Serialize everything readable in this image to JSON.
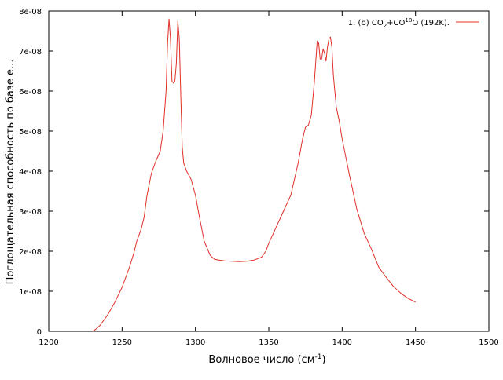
{
  "chart_data": {
    "type": "line",
    "title": "",
    "xlabel": "Волновое число (см",
    "xlabel_superscript": "-1",
    "xlabel_suffix": ")",
    "ylabel": "Поглощательная способность по базе e...",
    "xlim": [
      1200,
      1500
    ],
    "ylim": [
      0,
      8e-08
    ],
    "grid": false,
    "legend_position": "top-right",
    "x_ticks": [
      {
        "value": 1200,
        "label": "1200"
      },
      {
        "value": 1250,
        "label": "1250"
      },
      {
        "value": 1300,
        "label": "1300"
      },
      {
        "value": 1350,
        "label": "1350"
      },
      {
        "value": 1400,
        "label": "1400"
      },
      {
        "value": 1450,
        "label": "1450"
      },
      {
        "value": 1500,
        "label": "1500"
      }
    ],
    "y_ticks": [
      {
        "value": 0,
        "label": "0"
      },
      {
        "value": 1e-08,
        "label": "1e-08"
      },
      {
        "value": 2e-08,
        "label": "2e-08"
      },
      {
        "value": 3e-08,
        "label": "3e-08"
      },
      {
        "value": 4e-08,
        "label": "4e-08"
      },
      {
        "value": 5e-08,
        "label": "5e-08"
      },
      {
        "value": 6e-08,
        "label": "6e-08"
      },
      {
        "value": 7e-08,
        "label": "7e-08"
      },
      {
        "value": 8e-08,
        "label": "8e-08"
      }
    ],
    "series": [
      {
        "name": "1. (b) CO2+CO18O (192K).",
        "legend_parts": [
          "1. (b) CO",
          "2",
          "+CO",
          "18",
          "O (192K)."
        ],
        "color": "#e0302a",
        "x": [
          1230,
          1232,
          1235,
          1240,
          1245,
          1250,
          1255,
          1258,
          1260,
          1263,
          1265,
          1267,
          1270,
          1273,
          1276,
          1278,
          1280,
          1281,
          1282,
          1283,
          1284,
          1285,
          1286,
          1287,
          1288,
          1289,
          1290,
          1291,
          1292,
          1294,
          1297,
          1300,
          1303,
          1306,
          1310,
          1313,
          1316,
          1320,
          1325,
          1330,
          1335,
          1340,
          1345,
          1348,
          1350,
          1355,
          1360,
          1365,
          1370,
          1373,
          1375,
          1377,
          1379,
          1381,
          1383,
          1384,
          1385,
          1386,
          1387,
          1388,
          1389,
          1390,
          1391,
          1392,
          1393,
          1394,
          1395,
          1396,
          1398,
          1400,
          1405,
          1410,
          1415,
          1420,
          1425,
          1430,
          1435,
          1440,
          1445,
          1450
        ],
        "values": [
          0,
          5e-10,
          1.5e-09,
          4e-09,
          7.2e-09,
          1.1e-08,
          1.6e-08,
          1.95e-08,
          2.25e-08,
          2.55e-08,
          2.85e-08,
          3.4e-08,
          3.95e-08,
          4.25e-08,
          4.5e-08,
          5e-08,
          6e-08,
          7.2e-08,
          7.8e-08,
          7.3e-08,
          6.25e-08,
          6.2e-08,
          6.25e-08,
          6.7e-08,
          7.75e-08,
          7.3e-08,
          5.9e-08,
          4.6e-08,
          4.2e-08,
          4e-08,
          3.8e-08,
          3.4e-08,
          2.8e-08,
          2.25e-08,
          1.9e-08,
          1.8e-08,
          1.78e-08,
          1.76e-08,
          1.75e-08,
          1.74e-08,
          1.75e-08,
          1.78e-08,
          1.85e-08,
          2e-08,
          2.2e-08,
          2.6e-08,
          3e-08,
          3.4e-08,
          4.2e-08,
          4.8e-08,
          5.1e-08,
          5.15e-08,
          5.4e-08,
          6.2e-08,
          7.25e-08,
          7.2e-08,
          6.8e-08,
          6.8e-08,
          7.05e-08,
          6.95e-08,
          6.75e-08,
          7.1e-08,
          7.3e-08,
          7.35e-08,
          7.1e-08,
          6.4e-08,
          6e-08,
          5.6e-08,
          5.25e-08,
          4.8e-08,
          3.9e-08,
          3.05e-08,
          2.45e-08,
          2.05e-08,
          1.6e-08,
          1.35e-08,
          1.12e-08,
          9.5e-09,
          8.2e-09,
          7.3e-09
        ]
      }
    ]
  }
}
